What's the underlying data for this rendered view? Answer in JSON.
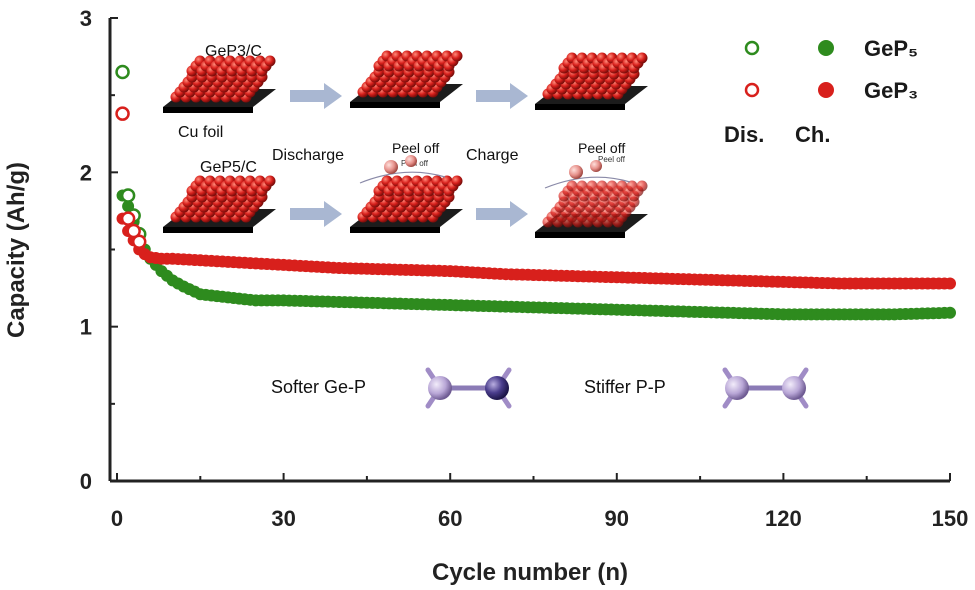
{
  "chart_data": {
    "type": "scatter",
    "xlabel": "Cycle number (n)",
    "ylabel": "Capacity (Ah/g)",
    "xlim": [
      0,
      150
    ],
    "ylim": [
      0,
      3
    ],
    "xticks": [
      "0",
      "30",
      "60",
      "90",
      "120",
      "150"
    ],
    "yticks": [
      "0",
      "1",
      "2",
      "3"
    ],
    "legend": {
      "placement": "top-right",
      "header_discharge": "Dis.",
      "header_charge": "Ch.",
      "entries": [
        {
          "label": "GeP₅",
          "color": "#2e8b1e"
        },
        {
          "label": "GeP₃",
          "color": "#d8201c"
        }
      ]
    },
    "series": [
      {
        "name": "GeP₅",
        "color": "#2e8b1e",
        "discharge": {
          "x": [
            1,
            2,
            3,
            4
          ],
          "y": [
            2.65,
            1.85,
            1.72,
            1.6
          ]
        },
        "charge_points": [
          [
            1,
            1.85
          ],
          [
            2,
            1.78
          ],
          [
            3,
            1.68
          ],
          [
            4,
            1.58
          ],
          [
            5,
            1.5
          ],
          [
            6,
            1.44
          ],
          [
            8,
            1.36
          ],
          [
            10,
            1.3
          ],
          [
            12,
            1.26
          ],
          [
            15,
            1.21
          ],
          [
            20,
            1.19
          ],
          [
            25,
            1.17
          ],
          [
            30,
            1.17
          ],
          [
            40,
            1.16
          ],
          [
            50,
            1.15
          ],
          [
            60,
            1.14
          ],
          [
            70,
            1.13
          ],
          [
            80,
            1.12
          ],
          [
            90,
            1.11
          ],
          [
            100,
            1.1
          ],
          [
            110,
            1.09
          ],
          [
            120,
            1.08
          ],
          [
            130,
            1.08
          ],
          [
            140,
            1.08
          ],
          [
            150,
            1.09
          ]
        ]
      },
      {
        "name": "GeP₃",
        "color": "#d8201c",
        "discharge": {
          "x": [
            1,
            2,
            3,
            4
          ],
          "y": [
            2.38,
            1.7,
            1.62,
            1.55
          ]
        },
        "charge_points": [
          [
            1,
            1.7
          ],
          [
            2,
            1.62
          ],
          [
            3,
            1.56
          ],
          [
            4,
            1.5
          ],
          [
            5,
            1.47
          ],
          [
            6,
            1.45
          ],
          [
            8,
            1.44
          ],
          [
            10,
            1.44
          ],
          [
            15,
            1.43
          ],
          [
            20,
            1.42
          ],
          [
            30,
            1.4
          ],
          [
            40,
            1.38
          ],
          [
            50,
            1.37
          ],
          [
            60,
            1.36
          ],
          [
            70,
            1.34
          ],
          [
            80,
            1.33
          ],
          [
            90,
            1.32
          ],
          [
            100,
            1.31
          ],
          [
            110,
            1.3
          ],
          [
            120,
            1.29
          ],
          [
            130,
            1.28
          ],
          [
            140,
            1.28
          ],
          [
            150,
            1.28
          ]
        ]
      }
    ],
    "annotations": {
      "gep3c": "GeP3/C",
      "gep5c": "GeP5/C",
      "cu_foil": "Cu foil",
      "discharge": "Discharge",
      "charge": "Charge",
      "peel_off": "Peel off",
      "softer": "Softer Ge-P",
      "stiffer": "Stiffer P-P"
    }
  }
}
